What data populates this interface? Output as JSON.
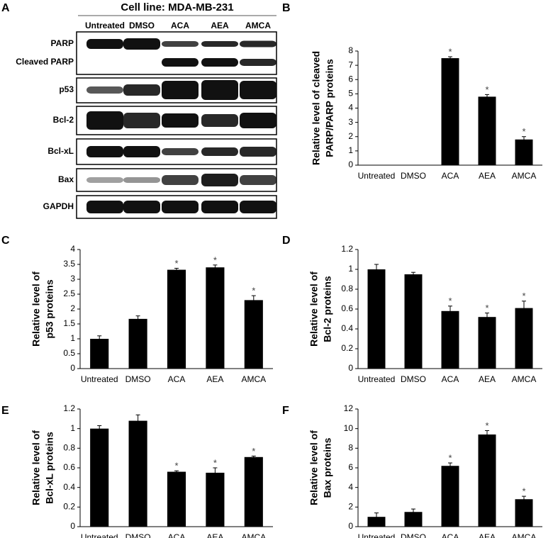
{
  "panel_labels": [
    "A",
    "B",
    "C",
    "D",
    "E",
    "F"
  ],
  "blot": {
    "title": "Cell line: MDA-MB-231",
    "lanes": [
      "Untreated",
      "DMSO",
      "ACA",
      "AEA",
      "AMCA"
    ],
    "rows": [
      "PARP",
      "Cleaved PARP",
      "p53",
      "Bcl-2",
      "Bcl-xL",
      "Bax",
      "GAPDH"
    ]
  },
  "chart_data": [
    {
      "type": "bar",
      "ylabel": [
        "Relative level of cleaved",
        "PARP/PARP proteins"
      ],
      "categories": [
        "Untreated",
        "DMSO",
        "ACA",
        "AEA",
        "AMCA"
      ],
      "values": [
        0,
        0,
        7.5,
        4.8,
        1.8
      ],
      "errors": [
        0,
        0,
        0.1,
        0.15,
        0.2
      ],
      "annotations": [
        null,
        null,
        "*",
        "*",
        "*"
      ],
      "color": "#000000",
      "ylim": [
        0,
        8
      ],
      "yticks": [
        0,
        1,
        2,
        3,
        4,
        5,
        6,
        7,
        8
      ]
    },
    {
      "type": "bar",
      "ylabel": [
        "Relative level of",
        "p53 proteins"
      ],
      "categories": [
        "Untreated",
        "DMSO",
        "ACA",
        "AEA",
        "AMCA"
      ],
      "values": [
        1.0,
        1.67,
        3.32,
        3.4,
        2.3
      ],
      "errors": [
        0.1,
        0.1,
        0.05,
        0.08,
        0.15
      ],
      "annotations": [
        null,
        null,
        "*",
        "*",
        "*"
      ],
      "color": "#000000",
      "ylim": [
        0,
        4
      ],
      "yticks": [
        0,
        0.5,
        1,
        1.5,
        2,
        2.5,
        3,
        3.5,
        4
      ]
    },
    {
      "type": "bar",
      "ylabel": [
        "Relative level of",
        "Bcl-2 proteins"
      ],
      "categories": [
        "Untreated",
        "DMSO",
        "ACA",
        "AEA",
        "AMCA"
      ],
      "values": [
        1.0,
        0.95,
        0.58,
        0.52,
        0.61
      ],
      "errors": [
        0.05,
        0.02,
        0.05,
        0.04,
        0.07
      ],
      "annotations": [
        null,
        null,
        "*",
        "*",
        "*"
      ],
      "color": "#000000",
      "ylim": [
        0,
        1.2
      ],
      "yticks": [
        0,
        0.2,
        0.4,
        0.6,
        0.8,
        1,
        1.2
      ]
    },
    {
      "type": "bar",
      "ylabel": [
        "Relative level of",
        "Bcl-xL proteins"
      ],
      "categories": [
        "Untreated",
        "DMSO",
        "ACA",
        "AEA",
        "AMCA"
      ],
      "values": [
        1.0,
        1.08,
        0.56,
        0.55,
        0.71
      ],
      "errors": [
        0.03,
        0.06,
        0.01,
        0.05,
        0.01
      ],
      "annotations": [
        null,
        null,
        "*",
        "*",
        "*"
      ],
      "color": "#000000",
      "ylim": [
        0,
        1.2
      ],
      "yticks": [
        0,
        0.2,
        0.4,
        0.6,
        0.8,
        1,
        1.2
      ]
    },
    {
      "type": "bar",
      "ylabel": [
        "Relative level of",
        "Bax proteins"
      ],
      "categories": [
        "Untreated",
        "DMSO",
        "ACA",
        "AEA",
        "AMCA"
      ],
      "values": [
        1.0,
        1.5,
        6.2,
        9.4,
        2.8
      ],
      "errors": [
        0.4,
        0.3,
        0.3,
        0.4,
        0.3
      ],
      "annotations": [
        null,
        null,
        "*",
        "*",
        "*"
      ],
      "color": "#000000",
      "ylim": [
        0,
        12
      ],
      "yticks": [
        0,
        2,
        4,
        6,
        8,
        10,
        12
      ]
    }
  ]
}
